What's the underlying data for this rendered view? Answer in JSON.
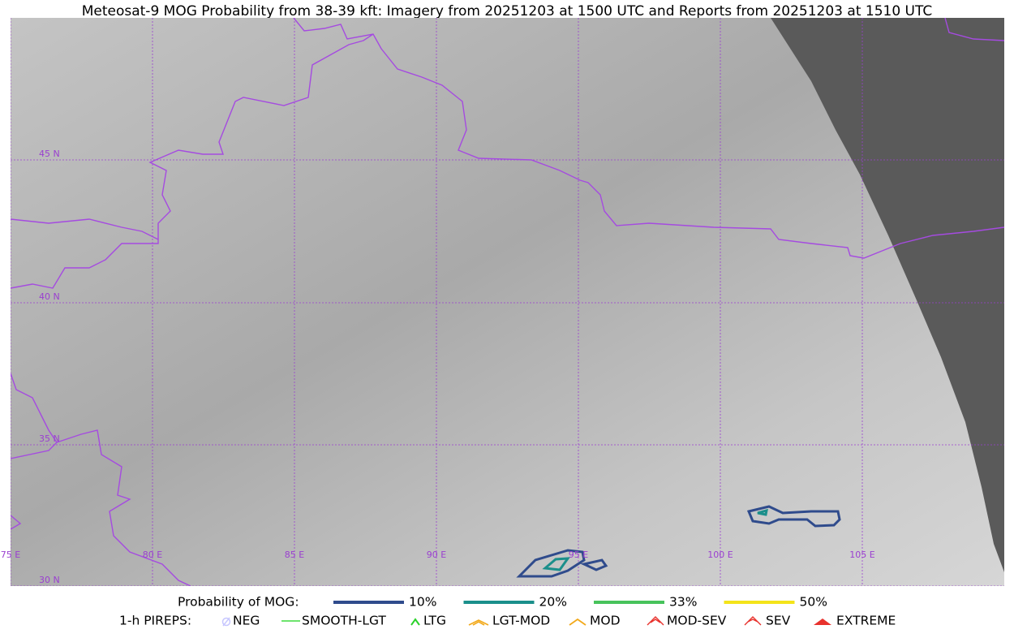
{
  "header": {
    "title": "Meteosat-9 MOG Probability from 38-39 kft: Imagery from 20251203 at 1500 UTC and Reports from 20251203 at 1510 UTC"
  },
  "map": {
    "lat_labels": [
      "45 N",
      "40 N",
      "35 N",
      "30 N"
    ],
    "lon_labels": [
      "75 E",
      "80 E",
      "85 E",
      "90 E",
      "95 E",
      "100 E",
      "105 E"
    ]
  },
  "legend": {
    "title": "Probability of MOG:",
    "items": [
      {
        "label": "10%",
        "color": "#2f4b8c"
      },
      {
        "label": "20%",
        "color": "#1b8f8b"
      },
      {
        "label": "33%",
        "color": "#47c35b"
      },
      {
        "label": "50%",
        "color": "#f4e41a"
      }
    ]
  },
  "pireps": {
    "title": "1-h PIREPS:",
    "items": [
      "NEG",
      "SMOOTH-LGT",
      "LTG",
      "LGT-MOD",
      "MOD",
      "MOD-SEV",
      "SEV",
      "EXTREME"
    ]
  }
}
